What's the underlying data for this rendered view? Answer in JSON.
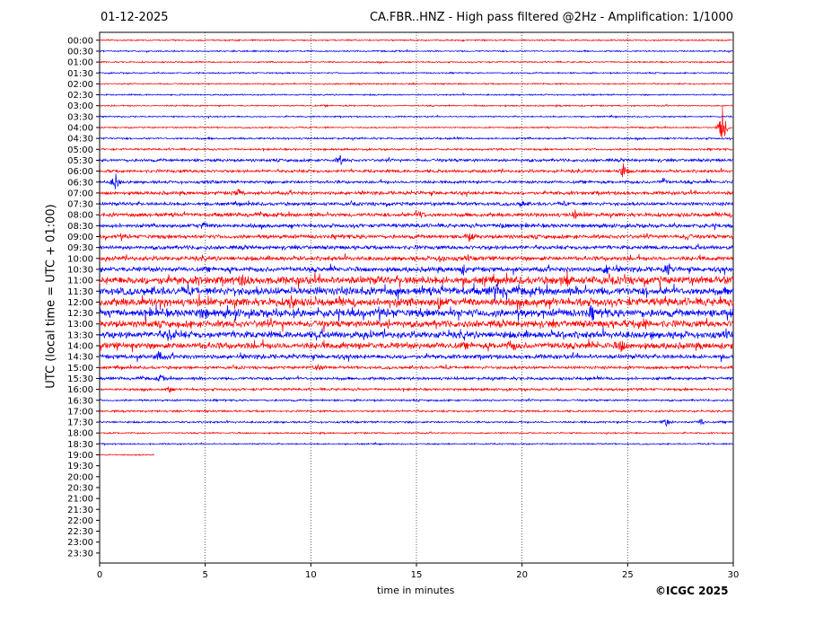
{
  "header": {
    "date": "01-12-2025",
    "title": "CA.FBR..HNZ - High pass filtered @2Hz - Amplification: 1/1000"
  },
  "footer": {
    "copyright": "©ICGC 2025"
  },
  "chart_data": {
    "type": "line",
    "subtype": "helicorder",
    "xlabel": "time in minutes",
    "ylabel": "UTC (local time = UTC + 01:00)",
    "xlim": [
      0,
      30
    ],
    "xticks": [
      0,
      5,
      10,
      15,
      20,
      25,
      30
    ],
    "grid": "vertical dotted lines at x ticks",
    "colors": {
      "even_rows": "#ff0000",
      "odd_rows": "#0000ff"
    },
    "rows": [
      "00:00",
      "00:30",
      "01:00",
      "01:30",
      "02:00",
      "02:30",
      "03:00",
      "03:30",
      "04:00",
      "04:30",
      "05:00",
      "05:30",
      "06:00",
      "06:30",
      "07:00",
      "07:30",
      "08:00",
      "08:30",
      "09:00",
      "09:30",
      "10:00",
      "10:30",
      "11:00",
      "11:30",
      "12:00",
      "12:30",
      "13:00",
      "13:30",
      "14:00",
      "14:30",
      "15:00",
      "15:30",
      "16:00",
      "16:30",
      "17:00",
      "17:30",
      "18:00",
      "18:30",
      "19:00",
      "19:30",
      "20:00",
      "20:30",
      "21:00",
      "21:30",
      "22:00",
      "22:30",
      "23:00",
      "23:30"
    ],
    "trace_end": {
      "row": "19:00",
      "minute": 2.6
    },
    "noise_level": [
      0.3,
      0.3,
      0.3,
      0.3,
      0.3,
      0.3,
      0.3,
      0.3,
      0.3,
      0.4,
      0.4,
      0.6,
      0.6,
      0.6,
      0.7,
      0.7,
      0.8,
      0.8,
      0.8,
      0.8,
      0.9,
      1.0,
      1.6,
      1.6,
      1.6,
      1.6,
      1.4,
      1.4,
      1.3,
      0.9,
      0.6,
      0.6,
      0.5,
      0.4,
      0.4,
      0.4,
      0.3,
      0.3,
      0.3
    ],
    "events": [
      {
        "row": "04:00",
        "minute": 29.5,
        "amplitude": 3.5
      },
      {
        "row": "05:30",
        "minute": 11.4,
        "amplitude": 0.7
      },
      {
        "row": "06:00",
        "minute": 24.8,
        "amplitude": 1.2
      },
      {
        "row": "06:30",
        "minute": 0.75,
        "amplitude": 1.4
      },
      {
        "row": "06:30",
        "minute": 26.7,
        "amplitude": 0.6
      },
      {
        "row": "07:00",
        "minute": 6.6,
        "amplitude": 0.6
      },
      {
        "row": "07:30",
        "minute": 20.0,
        "amplitude": 0.5
      },
      {
        "row": "08:00",
        "minute": 15.2,
        "amplitude": 0.6
      },
      {
        "row": "08:00",
        "minute": 22.5,
        "amplitude": 0.6
      },
      {
        "row": "08:30",
        "minute": 4.9,
        "amplitude": 0.6
      },
      {
        "row": "08:30",
        "minute": 19.2,
        "amplitude": 0.7
      },
      {
        "row": "09:00",
        "minute": 17.5,
        "amplitude": 0.6
      },
      {
        "row": "09:00",
        "minute": 27.8,
        "amplitude": 0.5
      },
      {
        "row": "10:00",
        "minute": 16.2,
        "amplitude": 0.5
      },
      {
        "row": "10:30",
        "minute": 17.2,
        "amplitude": 0.7
      },
      {
        "row": "10:30",
        "minute": 24.0,
        "amplitude": 0.9
      },
      {
        "row": "10:30",
        "minute": 26.9,
        "amplitude": 1.1
      },
      {
        "row": "11:00",
        "minute": 6.8,
        "amplitude": 0.8
      },
      {
        "row": "11:00",
        "minute": 22.2,
        "amplitude": 0.8
      },
      {
        "row": "11:30",
        "minute": 18.7,
        "amplitude": 0.8
      },
      {
        "row": "12:00",
        "minute": 9.1,
        "amplitude": 1.2
      },
      {
        "row": "12:00",
        "minute": 16.1,
        "amplitude": 1.0
      },
      {
        "row": "12:30",
        "minute": 4.9,
        "amplitude": 0.9
      },
      {
        "row": "12:30",
        "minute": 23.3,
        "amplitude": 0.8
      },
      {
        "row": "13:00",
        "minute": 25.8,
        "amplitude": 0.8
      },
      {
        "row": "13:30",
        "minute": 3.3,
        "amplitude": 1.0
      },
      {
        "row": "14:00",
        "minute": 19.5,
        "amplitude": 0.8
      },
      {
        "row": "14:00",
        "minute": 24.7,
        "amplitude": 0.8
      },
      {
        "row": "14:30",
        "minute": 2.8,
        "amplitude": 0.8
      },
      {
        "row": "15:00",
        "minute": 10.4,
        "amplitude": 0.5
      },
      {
        "row": "15:30",
        "minute": 2.9,
        "amplitude": 0.5
      },
      {
        "row": "16:00",
        "minute": 3.3,
        "amplitude": 0.5
      },
      {
        "row": "17:30",
        "minute": 26.8,
        "amplitude": 0.7
      },
      {
        "row": "17:30",
        "minute": 28.5,
        "amplitude": 0.6
      }
    ]
  }
}
